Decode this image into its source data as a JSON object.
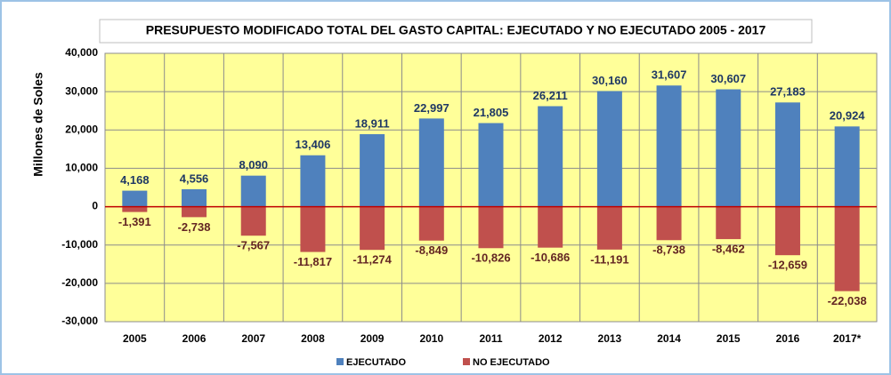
{
  "chart_data": {
    "type": "bar",
    "title": "PRESUPUESTO  MODIFICADO  TOTAL  DEL  GASTO  CAPITAL:  EJECUTADO  Y NO EJECUTADO  2005 - 2017",
    "y_label": "Millones de Soles",
    "categories": [
      "2005",
      "2006",
      "2007",
      "2008",
      "2009",
      "2010",
      "2011",
      "2012",
      "2013",
      "2014",
      "2015",
      "2016",
      "2017*"
    ],
    "series": [
      {
        "name": "EJECUTADO",
        "color": "#4f81bd",
        "label_color": "#1f3864",
        "values": [
          4168,
          4556,
          8090,
          13406,
          18911,
          22997,
          21805,
          26211,
          30160,
          31607,
          30607,
          27183,
          20924
        ],
        "value_labels": [
          "4,168",
          "4,556",
          "8,090",
          "13,406",
          "18,911",
          "22,997",
          "21,805",
          "26,211",
          "30,160",
          "31,607",
          "30,607",
          "27,183",
          "20,924"
        ]
      },
      {
        "name": "NO EJECUTADO",
        "color": "#c0504d",
        "label_color": "#632523",
        "values": [
          -1391,
          -2738,
          -7567,
          -11817,
          -11274,
          -8849,
          -10826,
          -10686,
          -11191,
          -8738,
          -8462,
          -12659,
          -22038
        ],
        "value_labels": [
          "-1,391",
          "-2,738",
          "-7,567",
          "-11,817",
          "-11,274",
          "-8,849",
          "-10,826",
          "-10,686",
          "-11,191",
          "-8,738",
          "-8,462",
          "-12,659",
          "-22,038"
        ]
      }
    ],
    "ylim": [
      -30000,
      40000
    ],
    "yticks": [
      {
        "value": -30000,
        "label": "-30,000"
      },
      {
        "value": -20000,
        "label": "-20,000"
      },
      {
        "value": -10000,
        "label": "-10,000"
      },
      0,
      {
        "value": 10000,
        "label": "10,000"
      },
      {
        "value": 20000,
        "label": "20,000"
      },
      {
        "value": 30000,
        "label": "30,000"
      },
      {
        "value": 40000,
        "label": "40,000"
      }
    ],
    "grid": true,
    "plot_background": "#ffff99",
    "zero_line_color": "#c00000",
    "legend": "bottom"
  }
}
